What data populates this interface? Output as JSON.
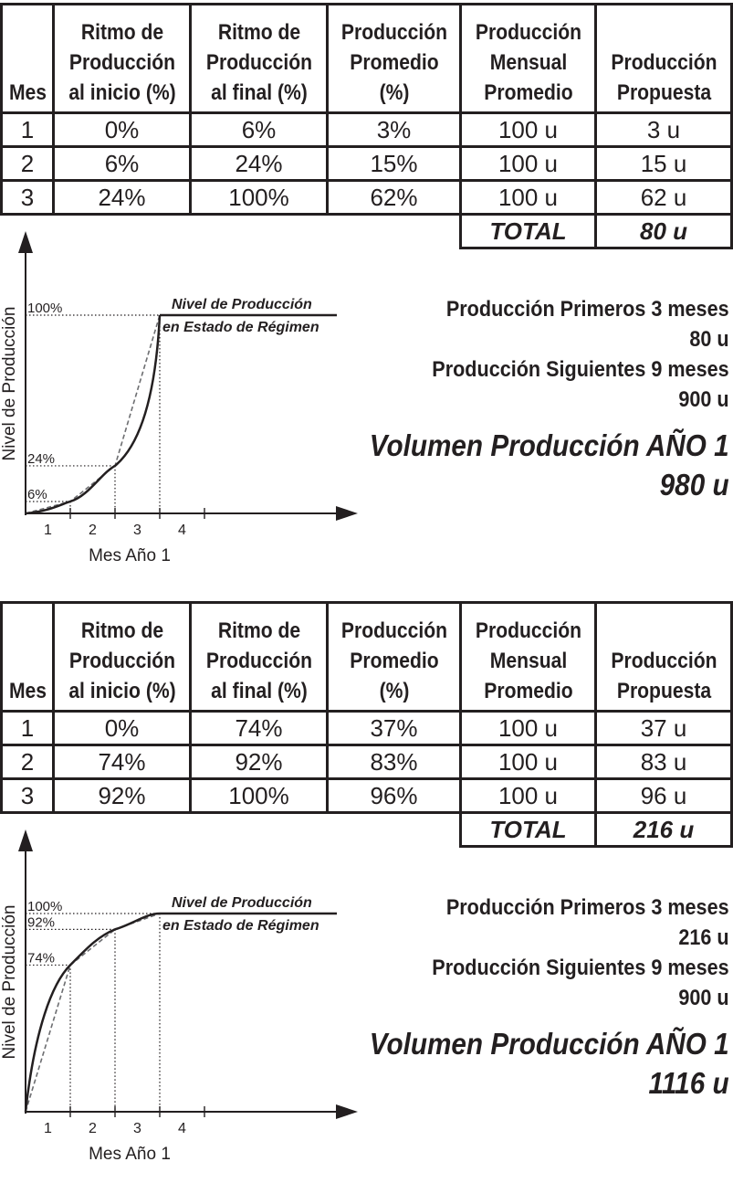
{
  "headers": {
    "mes": "Mes",
    "ritmo_inicio": [
      "Ritmo de",
      "Producción",
      "al inicio (%)"
    ],
    "ritmo_final": [
      "Ritmo de",
      "Producción",
      "al final (%)"
    ],
    "promedio": [
      "Producción",
      "Promedio",
      "(%)"
    ],
    "mensual": [
      "Producción",
      "Mensual",
      "Promedio"
    ],
    "propuesta": [
      "Producción",
      "Propuesta"
    ]
  },
  "scenarios": [
    {
      "rows": [
        [
          "1",
          "0%",
          "6%",
          "3%",
          "100 u",
          "3 u"
        ],
        [
          "2",
          "6%",
          "24%",
          "15%",
          "100 u",
          "15 u"
        ],
        [
          "3",
          "24%",
          "100%",
          "62%",
          "100 u",
          "62 u"
        ]
      ],
      "total_label": "TOTAL",
      "total_value": "80 u",
      "chart": {
        "ylabel": "Nivel de Producción",
        "xlabel": "Mes   Año 1",
        "x_ticks": [
          "1",
          "2",
          "3",
          "4"
        ],
        "level_labels": [
          "100%",
          "24%",
          "6%"
        ],
        "levels": [
          1.0,
          0.24,
          0.06
        ],
        "steady_label": [
          "Nivel de Producción",
          "en Estado de Régimen"
        ],
        "curve": "convex"
      },
      "summary": {
        "first_label": "Producción Primeros 3 meses",
        "first_value": "80 u",
        "next_label": "Producción Siguientes 9 meses",
        "next_value": "900 u",
        "volume_label": "Volumen Producción AÑO 1",
        "volume_value": "980 u"
      }
    },
    {
      "rows": [
        [
          "1",
          "0%",
          "74%",
          "37%",
          "100 u",
          "37 u"
        ],
        [
          "2",
          "74%",
          "92%",
          "83%",
          "100 u",
          "83 u"
        ],
        [
          "3",
          "92%",
          "100%",
          "96%",
          "100 u",
          "96 u"
        ]
      ],
      "total_label": "TOTAL",
      "total_value": "216 u",
      "chart": {
        "ylabel": "Nivel de Producción",
        "xlabel": "Mes   Año 1",
        "x_ticks": [
          "1",
          "2",
          "3",
          "4"
        ],
        "level_labels": [
          "100%",
          "92%",
          "74%"
        ],
        "levels": [
          1.0,
          0.92,
          0.74
        ],
        "steady_label": [
          "Nivel de Producción",
          "en Estado de Régimen"
        ],
        "curve": "concave"
      },
      "summary": {
        "first_label": "Producción Primeros 3 meses",
        "first_value": "216 u",
        "next_label": "Producción Siguientes 9 meses",
        "next_value": "900 u",
        "volume_label": "Volumen Producción AÑO 1",
        "volume_value": "1116 u"
      }
    }
  ]
}
